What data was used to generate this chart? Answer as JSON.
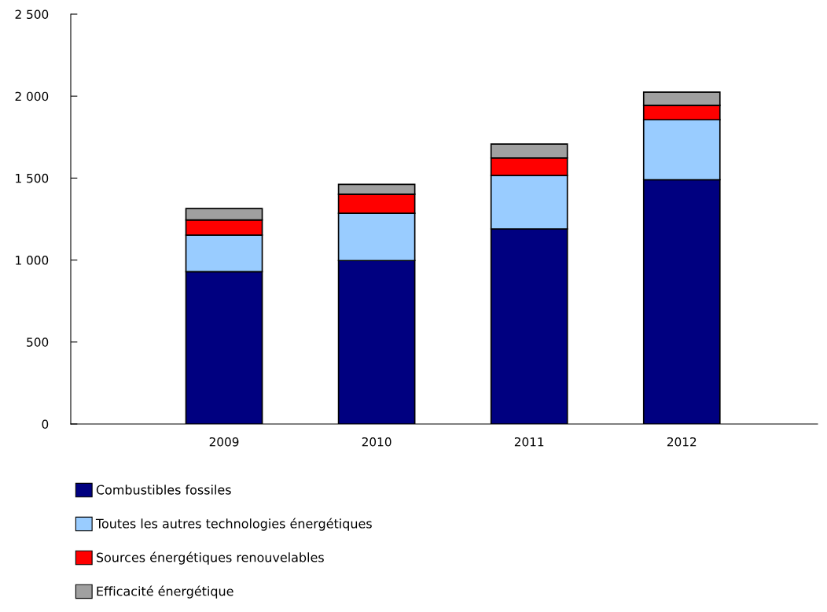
{
  "chart_data": {
    "type": "bar",
    "stacked": true,
    "categories": [
      "2009",
      "2010",
      "2011",
      "2012"
    ],
    "series": [
      {
        "name": "Combustibles fossiles",
        "color": "#000080",
        "values": [
          929,
          997,
          1190,
          1490
        ]
      },
      {
        "name": "Toutes les autres technologies énergétiques",
        "color": "#99ccff",
        "values": [
          223,
          288,
          326,
          366
        ]
      },
      {
        "name": "Sources énergétiques renouvelables",
        "color": "#ff0000",
        "values": [
          93,
          117,
          107,
          88
        ]
      },
      {
        "name": "Efficacité énergétique",
        "color": "#a0a0a0",
        "values": [
          69,
          60,
          85,
          80
        ]
      }
    ],
    "ylim": [
      0,
      2500
    ],
    "yticks": [
      {
        "value": 0,
        "label": "0"
      },
      {
        "value": 500,
        "label": "500"
      },
      {
        "value": 1000,
        "label": "1 000"
      },
      {
        "value": 1500,
        "label": "1 500"
      },
      {
        "value": 2000,
        "label": "2 000"
      },
      {
        "value": 2500,
        "label": "2 500"
      }
    ],
    "grid": false,
    "legend": "bottom"
  }
}
